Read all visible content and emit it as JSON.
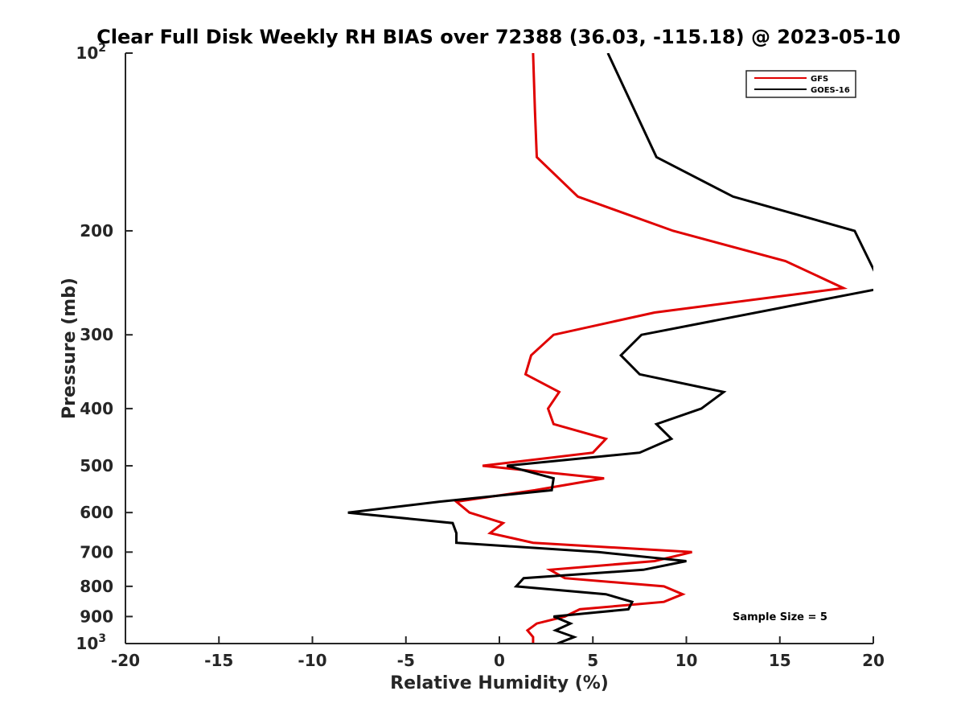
{
  "chart_data": {
    "type": "line",
    "title": "Clear Full Disk Weekly RH BIAS over 72388 (36.03, -115.18) @ 2023-05-10",
    "xlabel": "Relative Humidity (%)",
    "ylabel": "Pressure (mb)",
    "xlim": [
      -20,
      20
    ],
    "ylim": [
      100,
      1000
    ],
    "y_scale": "log",
    "y_reversed": true,
    "x_ticks": [
      "-20",
      "-15",
      "-10",
      "-5",
      "0",
      "5",
      "10",
      "15",
      "20"
    ],
    "y_ticks": [
      {
        "value": 100,
        "base": "10",
        "exp": "2"
      },
      {
        "value": 200,
        "label": "200"
      },
      {
        "value": 300,
        "label": "300"
      },
      {
        "value": 400,
        "label": "400"
      },
      {
        "value": 500,
        "label": "500"
      },
      {
        "value": 600,
        "label": "600"
      },
      {
        "value": 700,
        "label": "700"
      },
      {
        "value": 800,
        "label": "800"
      },
      {
        "value": 900,
        "label": "900"
      },
      {
        "value": 1000,
        "base": "10",
        "exp": "3"
      }
    ],
    "grid": false,
    "legend_position": "top-right",
    "annotation": "Sample Size = 5",
    "series": [
      {
        "name": "GFS",
        "color": "#e00000",
        "points": [
          [
            1.8,
            100
          ],
          [
            1.9,
            125
          ],
          [
            2.0,
            150
          ],
          [
            4.2,
            175
          ],
          [
            9.3,
            200
          ],
          [
            15.3,
            225
          ],
          [
            18.4,
            250
          ],
          [
            8.3,
            275
          ],
          [
            2.9,
            300
          ],
          [
            1.7,
            325
          ],
          [
            1.4,
            350
          ],
          [
            3.2,
            375
          ],
          [
            2.6,
            400
          ],
          [
            2.9,
            425
          ],
          [
            5.7,
            450
          ],
          [
            5.0,
            475
          ],
          [
            -0.9,
            500
          ],
          [
            5.6,
            525
          ],
          [
            1.9,
            550
          ],
          [
            -2.3,
            575
          ],
          [
            -1.6,
            600
          ],
          [
            0.2,
            625
          ],
          [
            -0.5,
            650
          ],
          [
            1.8,
            675
          ],
          [
            10.3,
            700
          ],
          [
            8.3,
            725
          ],
          [
            2.7,
            750
          ],
          [
            3.5,
            775
          ],
          [
            8.8,
            800
          ],
          [
            9.8,
            825
          ],
          [
            8.8,
            850
          ],
          [
            4.3,
            875
          ],
          [
            3.5,
            900
          ],
          [
            2.0,
            925
          ],
          [
            1.5,
            950
          ],
          [
            1.8,
            975
          ],
          [
            1.8,
            1000
          ]
        ]
      },
      {
        "name": "GOES-16",
        "color": "#000000",
        "points": [
          [
            5.8,
            100
          ],
          [
            8.4,
            150
          ],
          [
            12.5,
            175
          ],
          [
            19.0,
            200
          ],
          [
            20.5,
            250
          ],
          [
            7.6,
            300
          ],
          [
            6.5,
            325
          ],
          [
            7.5,
            350
          ],
          [
            12.0,
            375
          ],
          [
            10.8,
            400
          ],
          [
            8.4,
            425
          ],
          [
            9.2,
            450
          ],
          [
            7.5,
            475
          ],
          [
            0.4,
            500
          ],
          [
            2.9,
            525
          ],
          [
            2.8,
            550
          ],
          [
            -3.2,
            575
          ],
          [
            -8.1,
            600
          ],
          [
            -2.5,
            625
          ],
          [
            -2.3,
            650
          ],
          [
            -2.3,
            675
          ],
          [
            5.3,
            700
          ],
          [
            10.0,
            725
          ],
          [
            7.7,
            750
          ],
          [
            1.3,
            775
          ],
          [
            0.9,
            800
          ],
          [
            5.7,
            825
          ],
          [
            7.1,
            850
          ],
          [
            6.9,
            875
          ],
          [
            2.9,
            900
          ],
          [
            3.8,
            925
          ],
          [
            3.0,
            950
          ],
          [
            4.0,
            975
          ],
          [
            3.1,
            1000
          ]
        ]
      }
    ]
  }
}
